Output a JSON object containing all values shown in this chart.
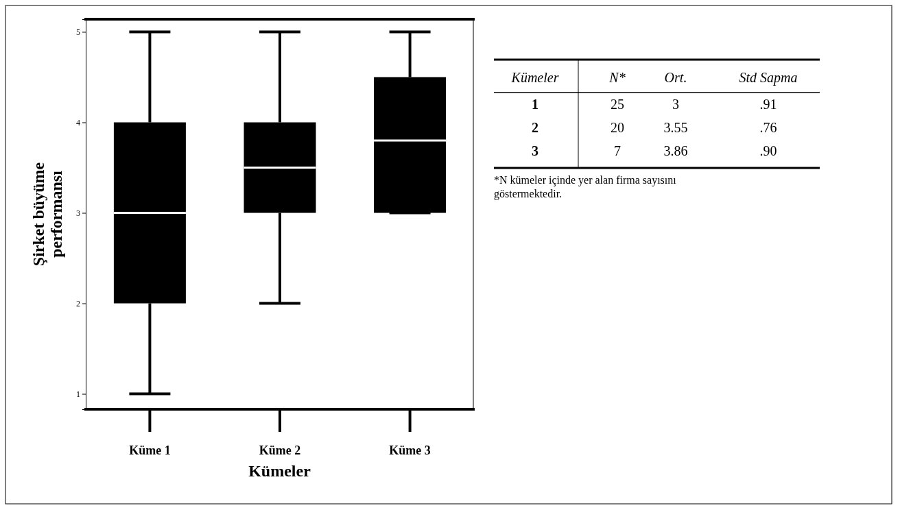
{
  "chart_data": [
    {
      "type": "box",
      "xlabel": "Kümeler",
      "ylabel": "Şirket büyüme performansı",
      "categories": [
        "Küme 1",
        "Küme 2",
        "Küme 3"
      ],
      "color": "#000000",
      "boxes": [
        {
          "low": 1,
          "q1": 2,
          "median": 3,
          "q3": 4,
          "high": 5
        },
        {
          "low": 2,
          "q1": 3,
          "median": 3.5,
          "q3": 4,
          "high": 5
        },
        {
          "low": 3,
          "q1": 3,
          "median": 3.8,
          "q3": 4.5,
          "high": 5
        }
      ],
      "ylim": [
        0.83,
        5.14
      ],
      "yticks": [
        1,
        2,
        3,
        4,
        5
      ],
      "grid": false
    },
    {
      "type": "other",
      "categories": [
        "Kümeler",
        "N*",
        "Ort.",
        "Std Sapma"
      ],
      "cell_labels": [
        [
          "1",
          "25",
          "3",
          ".91"
        ],
        [
          "2",
          "20",
          "3.55",
          ".76"
        ],
        [
          "3",
          "7",
          "3.86",
          ".90"
        ]
      ],
      "annotations": [
        "*N kümeler içinde yer alan firma sayısını göstermektedir."
      ]
    }
  ]
}
